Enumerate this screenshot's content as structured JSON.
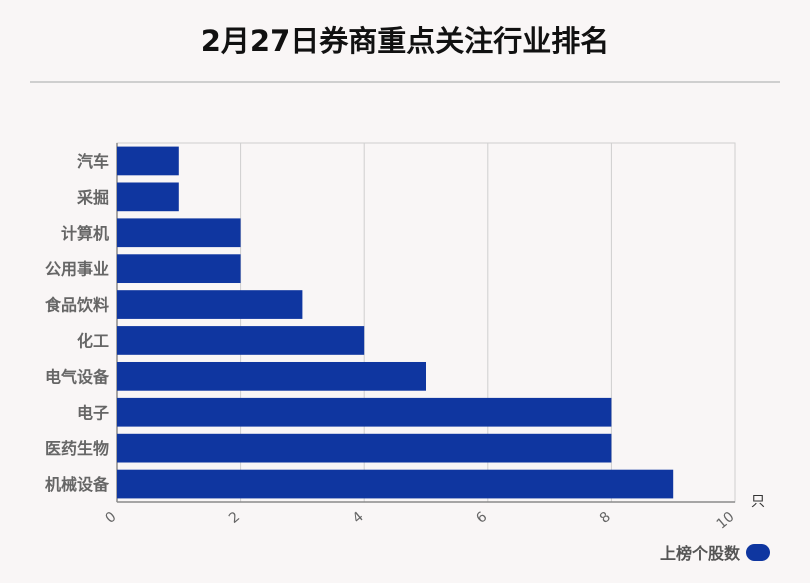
{
  "title": "2月27日券商重点关注行业排名",
  "unit": "只",
  "colors": {
    "bar": "#0f36a0",
    "grid": "#cfcfcf",
    "axis": "#8a8a8a",
    "label": "#666666"
  },
  "chart_data": {
    "type": "bar",
    "orientation": "horizontal",
    "categories": [
      "汽车",
      "采掘",
      "计算机",
      "公用事业",
      "食品饮料",
      "化工",
      "电气设备",
      "电子",
      "医药生物",
      "机械设备"
    ],
    "series": [
      {
        "name": "上榜个股数",
        "values": [
          1,
          1,
          2,
          2,
          3,
          4,
          5,
          8,
          8,
          9
        ]
      }
    ],
    "xlim": [
      0,
      10
    ],
    "xticks": [
      "0",
      "2",
      "4",
      "6",
      "8",
      "10"
    ],
    "xunit": "只",
    "grid": true,
    "legend": "bottom-right"
  }
}
